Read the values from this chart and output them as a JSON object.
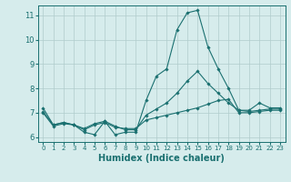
{
  "xlabel": "Humidex (Indice chaleur)",
  "xlim": [
    -0.5,
    23.5
  ],
  "ylim": [
    5.8,
    11.4
  ],
  "yticks": [
    6,
    7,
    8,
    9,
    10,
    11
  ],
  "xticks": [
    0,
    1,
    2,
    3,
    4,
    5,
    6,
    7,
    8,
    9,
    10,
    11,
    12,
    13,
    14,
    15,
    16,
    17,
    18,
    19,
    20,
    21,
    22,
    23
  ],
  "background_color": "#d6ecec",
  "grid_color": "#b0cccc",
  "line_color": "#1a7070",
  "hours": [
    0,
    1,
    2,
    3,
    4,
    5,
    6,
    7,
    8,
    9,
    10,
    11,
    12,
    13,
    14,
    15,
    16,
    17,
    18,
    19,
    20,
    21,
    22,
    23
  ],
  "line1": [
    7.2,
    6.5,
    6.6,
    6.5,
    6.2,
    6.1,
    6.65,
    6.1,
    6.2,
    6.2,
    7.5,
    8.5,
    8.8,
    10.4,
    11.1,
    11.2,
    9.7,
    8.8,
    8.0,
    7.1,
    7.1,
    7.4,
    7.2,
    7.2
  ],
  "line2": [
    7.05,
    6.5,
    6.6,
    6.5,
    6.35,
    6.55,
    6.65,
    6.45,
    6.3,
    6.3,
    6.9,
    7.15,
    7.4,
    7.8,
    8.3,
    8.7,
    8.2,
    7.8,
    7.4,
    7.1,
    7.05,
    7.1,
    7.15,
    7.15
  ],
  "line3": [
    7.0,
    6.45,
    6.55,
    6.5,
    6.3,
    6.5,
    6.6,
    6.4,
    6.35,
    6.35,
    6.7,
    6.8,
    6.9,
    7.0,
    7.1,
    7.2,
    7.35,
    7.5,
    7.55,
    7.0,
    7.0,
    7.05,
    7.1,
    7.1
  ]
}
